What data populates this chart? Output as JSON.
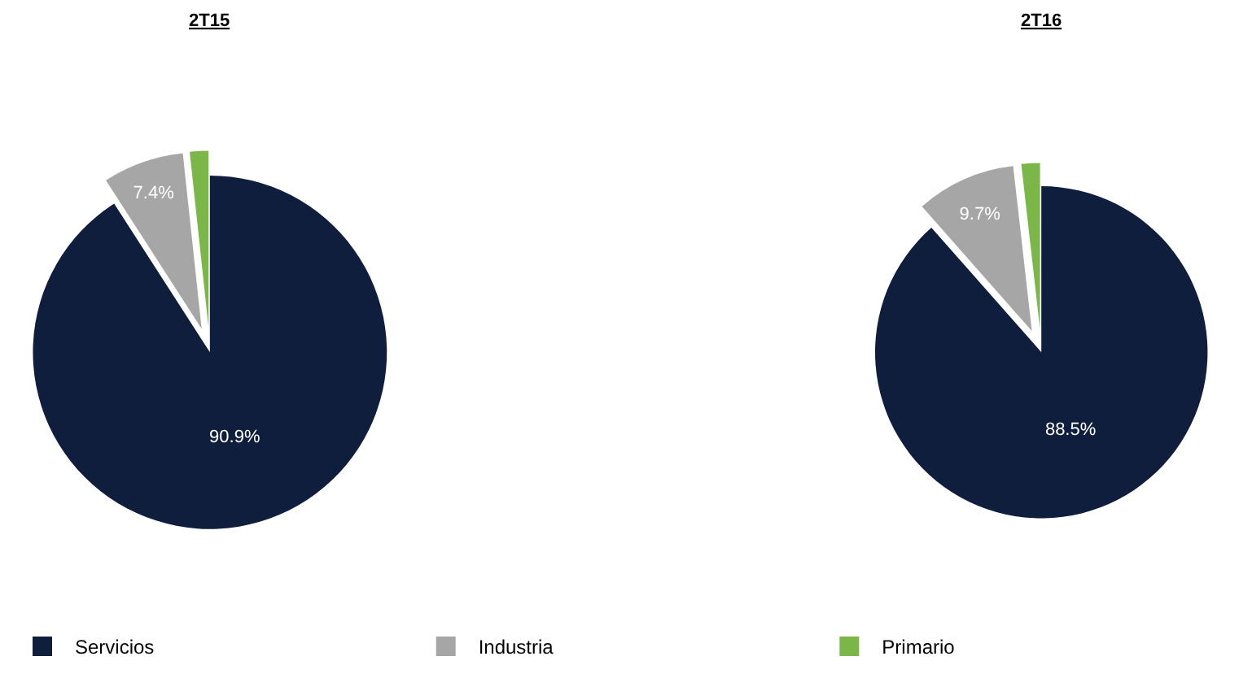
{
  "chart_data": [
    {
      "type": "pie",
      "title": "2T15",
      "categories": [
        "Servicios",
        "Industria",
        "Primario"
      ],
      "values": [
        90.9,
        7.4,
        1.7
      ],
      "value_labels": [
        "90.9%",
        "7.4%",
        null
      ],
      "colors": [
        "#0f1e3c",
        "#a6a6a6",
        "#7ab648"
      ],
      "legend": "bottom"
    },
    {
      "type": "pie",
      "title": "2T16",
      "categories": [
        null,
        null,
        null
      ],
      "values": [
        88.5,
        9.7,
        1.8
      ],
      "value_labels": [
        "88.5%",
        "9.7%",
        null
      ],
      "colors": [
        "#0f1e3c",
        "#a6a6a6",
        "#7ab648"
      ]
    }
  ]
}
